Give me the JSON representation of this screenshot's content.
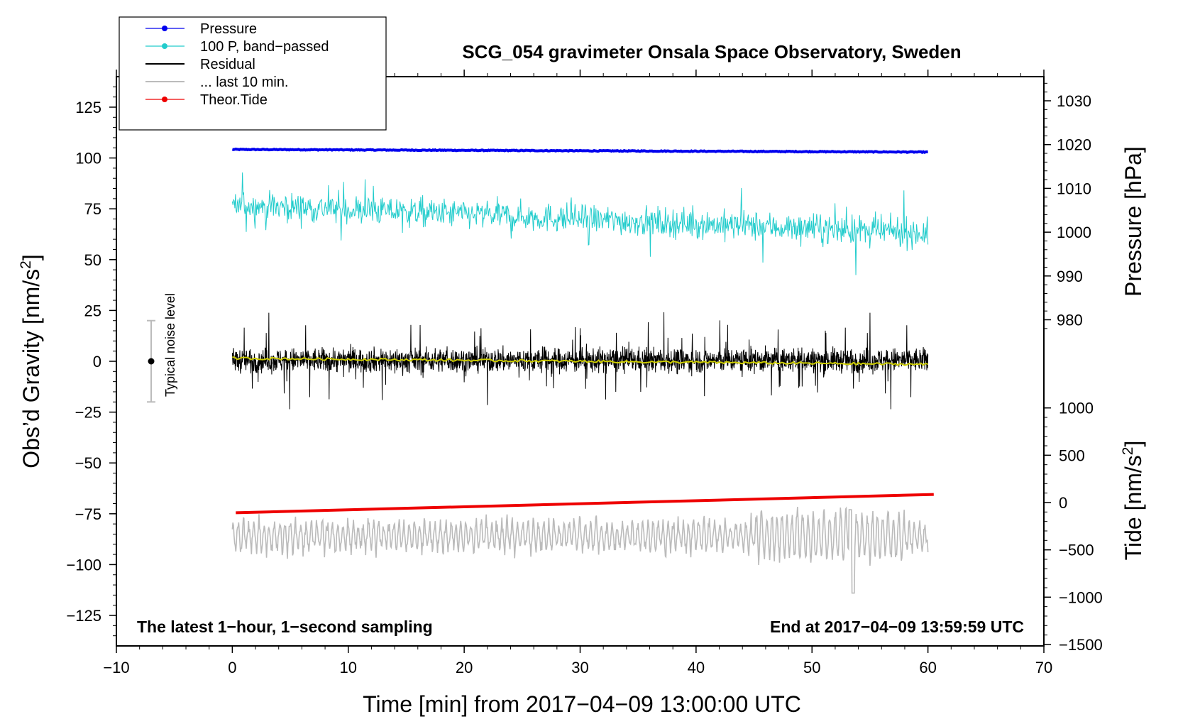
{
  "chart_data": {
    "type": "line",
    "title": "SCG_054 gravimeter Onsala Space Observatory, Sweden",
    "xlabel": "Time [min] from 2017−04−09 13:00:00 UTC",
    "ylabel": "Obs’d Gravity [nm/s",
    "ylabel_sup": "2",
    "ylabel_end": "]",
    "y2label": "Pressure [hPa]",
    "y3label": "Tide [nm/s",
    "y3label_sup": "2",
    "y3label_end": "]",
    "xlim": [
      -10,
      70
    ],
    "ylim": [
      -140,
      140
    ],
    "xticks": [
      "−10",
      "0",
      "10",
      "20",
      "30",
      "40",
      "50",
      "60",
      "70"
    ],
    "xtick_values": [
      -10,
      0,
      10,
      20,
      30,
      40,
      50,
      60,
      70
    ],
    "yticks": [
      "125",
      "100",
      "75",
      "50",
      "25",
      "0",
      "−25",
      "−50",
      "−75",
      "−100",
      "−125"
    ],
    "ytick_values": [
      125,
      100,
      75,
      50,
      25,
      0,
      -25,
      -50,
      -75,
      -100,
      -125
    ],
    "pressure_ticks": [
      "1030",
      "1020",
      "1010",
      "1000",
      "990",
      "980"
    ],
    "pressure_tick_values": [
      1030,
      1020,
      1010,
      1000,
      990,
      980
    ],
    "tide_ticks": [
      "1000",
      "500",
      "0",
      "−500",
      "−1000",
      "−1500"
    ],
    "tide_tick_values": [
      1000,
      500,
      0,
      -500,
      -1000,
      -1500
    ],
    "annotation_left": "The latest 1−hour, 1−second sampling",
    "annotation_right": "End at 2017−04−09 13:59:59 UTC",
    "noise_label": "Typical noise level",
    "noise_bar": {
      "x": -7,
      "center": 0,
      "low": -20,
      "high": 20
    },
    "legend": [
      {
        "label": "Pressure",
        "color": "#0000ee",
        "marker": true
      },
      {
        "label": "100 P, band−passed",
        "color": "#22cccc",
        "marker": true
      },
      {
        "label": "Residual",
        "color": "#000000",
        "marker": false
      },
      {
        "label": "... last 10 min.",
        "color": "#bbbbbb",
        "marker": false
      },
      {
        "label": "Theor.Tide",
        "color": "#ee0000",
        "marker": true
      }
    ],
    "series": [
      {
        "name": "Pressure",
        "color": "#0000ee",
        "x_range": [
          0,
          60
        ],
        "start": 104.2,
        "end": 102.9
      },
      {
        "name": "100 P, band−passed",
        "color": "#22cccc",
        "x_range": [
          0,
          60
        ],
        "start": 77,
        "end": 63,
        "amplitude": 10
      },
      {
        "name": "Residual",
        "color": "#000000",
        "x_range": [
          0,
          60
        ],
        "center": 0.5,
        "amplitude": 8
      },
      {
        "name": "Residual smoothed",
        "color": "#cccc00",
        "x_range": [
          0,
          60
        ],
        "start": 1.5,
        "end": -1.5
      },
      {
        "name": "... last 10 min.",
        "color": "#bbbbbb",
        "x_range": [
          0,
          60
        ],
        "center": -86,
        "amplitude": 10
      },
      {
        "name": "Theor.Tide",
        "color": "#ee0000",
        "x_range": [
          0.3,
          60.5
        ],
        "start": -74.5,
        "end": -65.5
      }
    ]
  }
}
